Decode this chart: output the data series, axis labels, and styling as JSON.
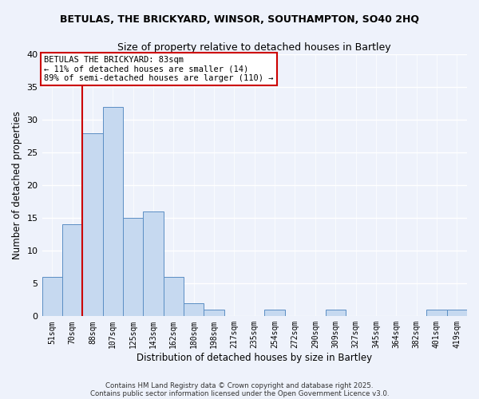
{
  "title": "BETULAS, THE BRICKYARD, WINSOR, SOUTHAMPTON, SO40 2HQ",
  "subtitle": "Size of property relative to detached houses in Bartley",
  "xlabel": "Distribution of detached houses by size in Bartley",
  "ylabel": "Number of detached properties",
  "categories": [
    "51sqm",
    "70sqm",
    "88sqm",
    "107sqm",
    "125sqm",
    "143sqm",
    "162sqm",
    "180sqm",
    "198sqm",
    "217sqm",
    "235sqm",
    "254sqm",
    "272sqm",
    "290sqm",
    "309sqm",
    "327sqm",
    "345sqm",
    "364sqm",
    "382sqm",
    "401sqm",
    "419sqm"
  ],
  "values": [
    6,
    14,
    28,
    32,
    15,
    16,
    6,
    2,
    1,
    0,
    0,
    1,
    0,
    0,
    1,
    0,
    0,
    0,
    0,
    1,
    1
  ],
  "bar_color": "#c6d9f0",
  "bar_edge_color": "#5b8ec4",
  "ylim": [
    0,
    40
  ],
  "yticks": [
    0,
    5,
    10,
    15,
    20,
    25,
    30,
    35,
    40
  ],
  "vline_x": 1.5,
  "vline_color": "#cc0000",
  "annotation_text": "BETULAS THE BRICKYARD: 83sqm\n← 11% of detached houses are smaller (14)\n89% of semi-detached houses are larger (110) →",
  "annotation_box_color": "#ffffff",
  "annotation_box_edge": "#cc0000",
  "bg_color": "#eef2fb",
  "grid_color": "#ffffff",
  "footer_line1": "Contains HM Land Registry data © Crown copyright and database right 2025.",
  "footer_line2": "Contains public sector information licensed under the Open Government Licence v3.0."
}
